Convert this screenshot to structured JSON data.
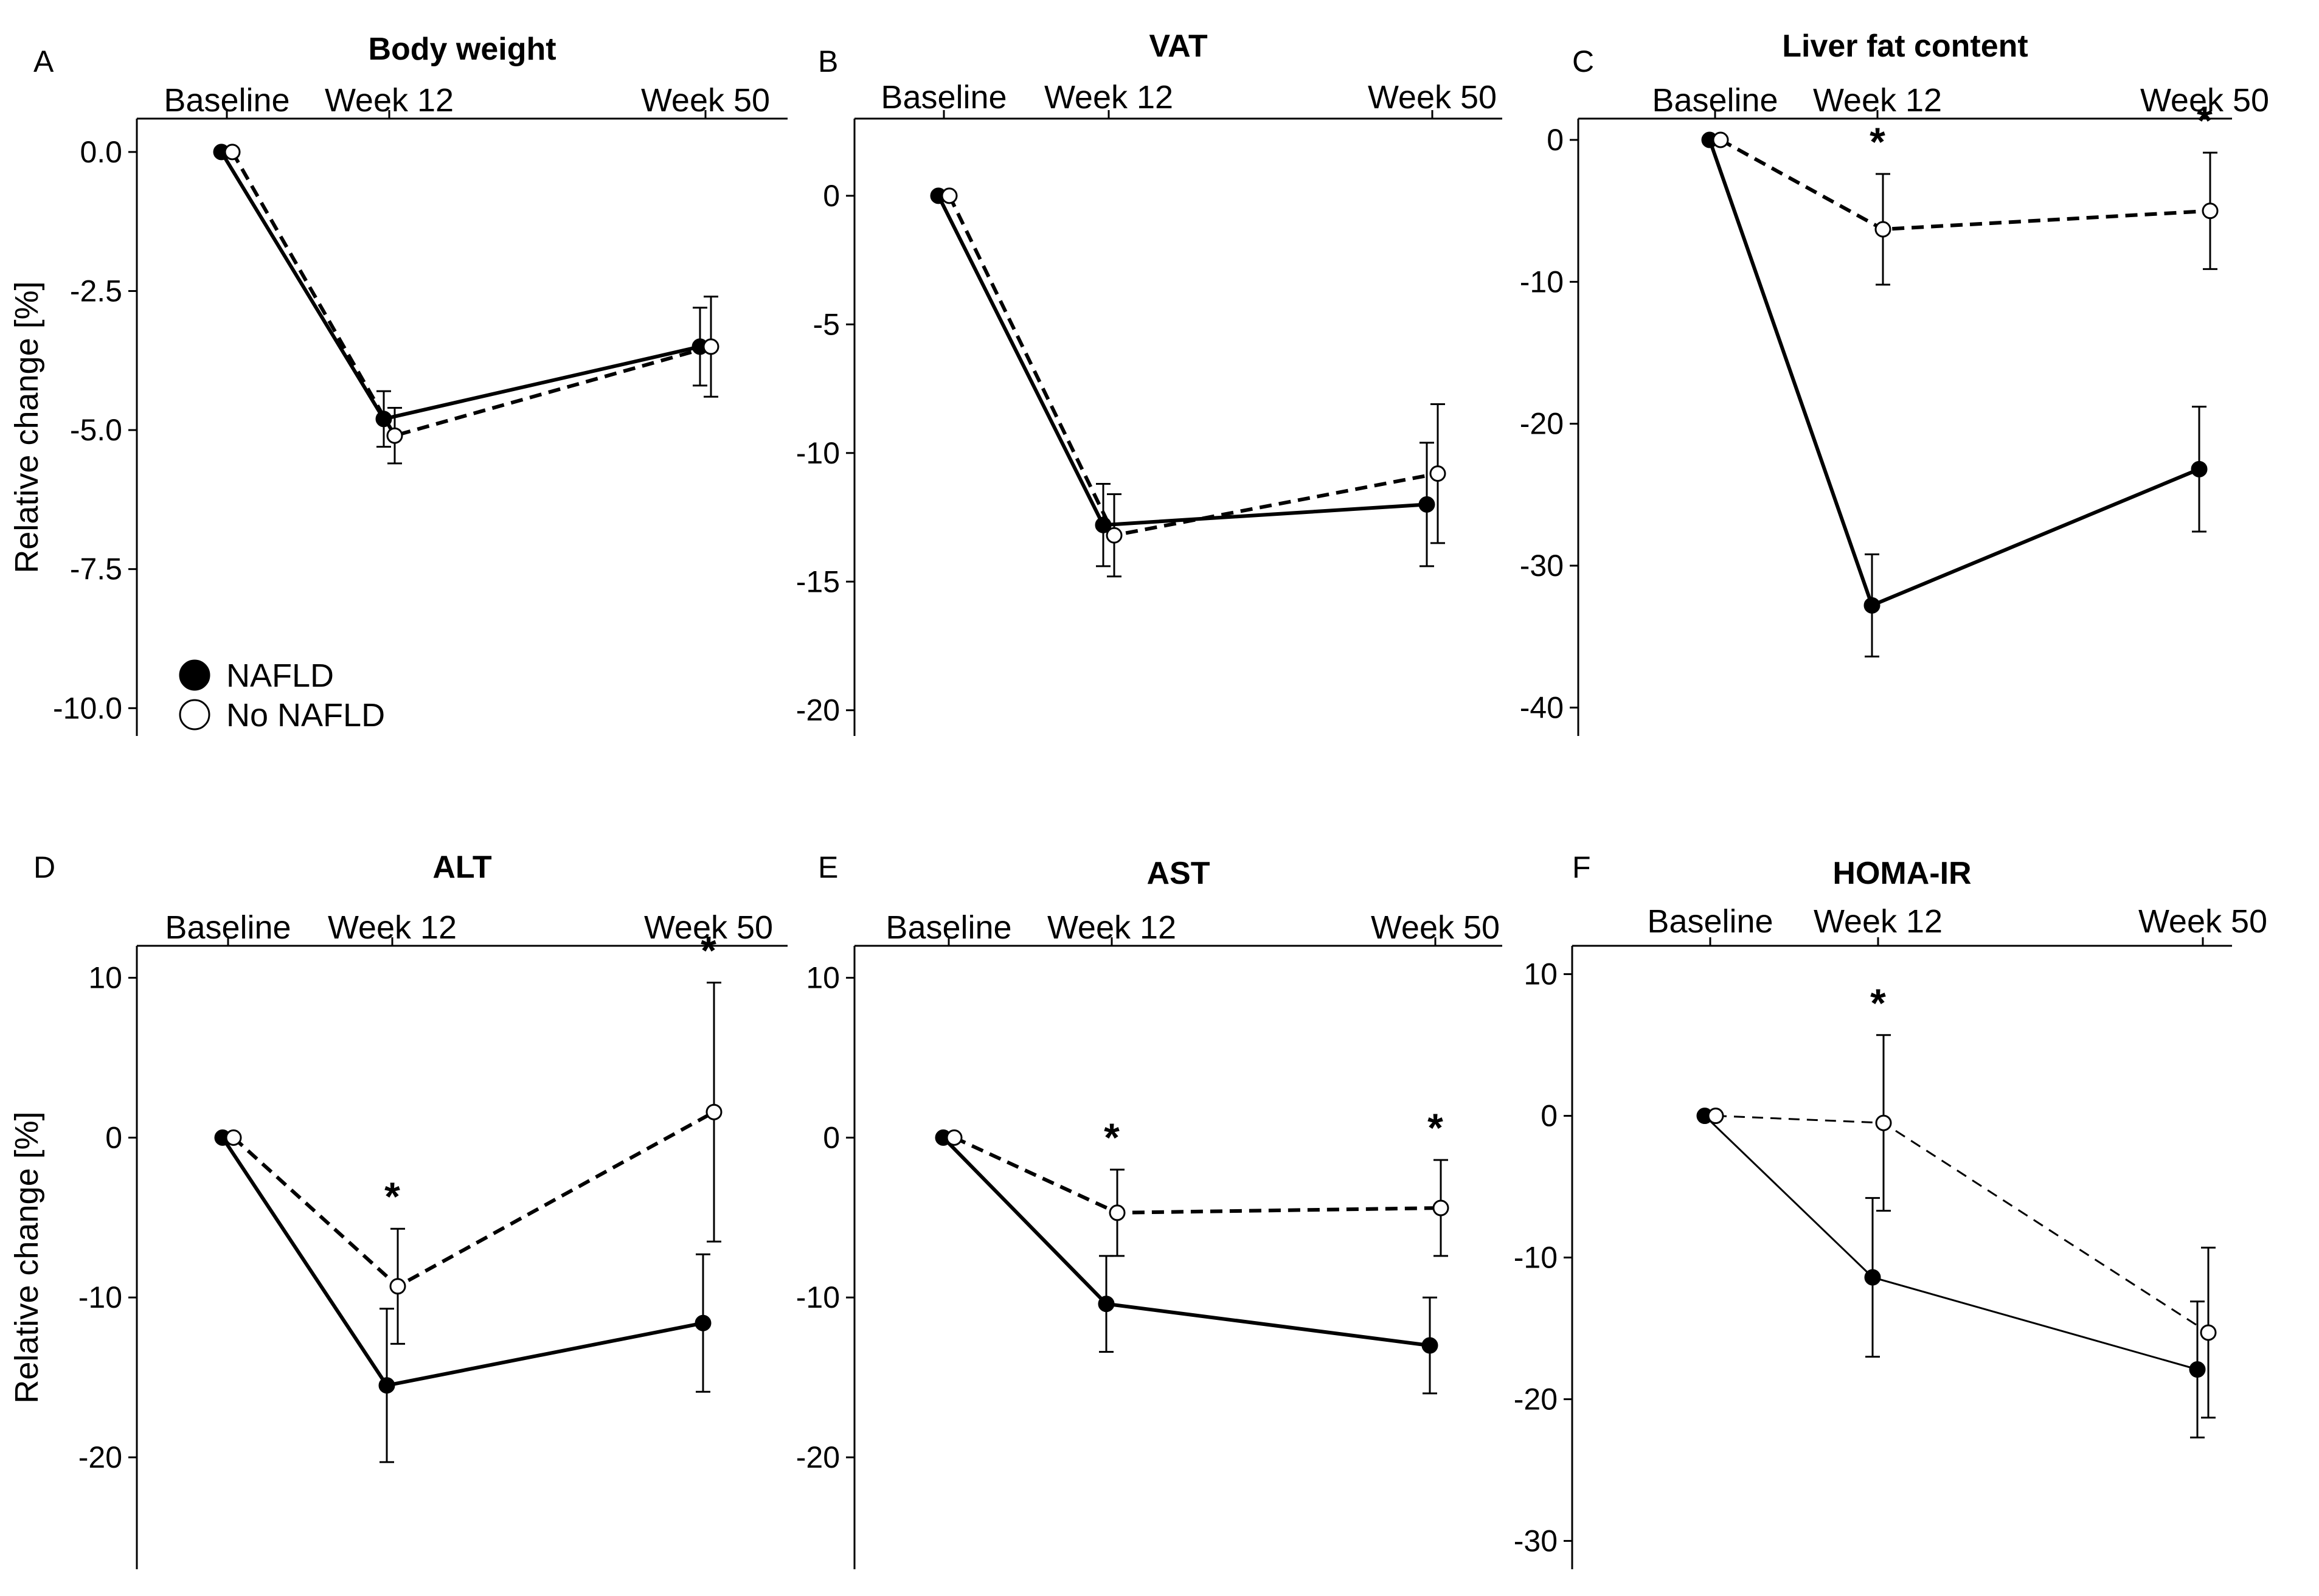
{
  "figure": {
    "y_axis_label": "Relative change [%]",
    "legend": [
      {
        "label": "NAFLD",
        "marker": "filled-circle",
        "line": "solid"
      },
      {
        "label": "No NAFLD",
        "marker": "open-circle",
        "line": "dashed"
      }
    ],
    "colors": {
      "ink": "#000000",
      "background": "#ffffff"
    }
  },
  "chart_data": [
    {
      "panel": "A",
      "type": "line",
      "title": "Body weight",
      "categories": [
        "Baseline",
        "Week 12",
        "Week 50"
      ],
      "ylim": [
        -10.5,
        0.6
      ],
      "yticks": [
        0.0,
        -2.5,
        -5.0,
        -7.5,
        -10.0
      ],
      "ytick_labels": [
        "0.0",
        "-2.5",
        "-5.0",
        "-7.5",
        "-10.0"
      ],
      "series": [
        {
          "name": "NAFLD",
          "values": [
            0,
            -4.8,
            -3.5
          ],
          "error": [
            0,
            0.5,
            0.7
          ]
        },
        {
          "name": "No NAFLD",
          "values": [
            0,
            -5.1,
            -3.5
          ],
          "error": [
            0,
            0.5,
            0.9
          ]
        }
      ],
      "significance": [
        false,
        false,
        false
      ]
    },
    {
      "panel": "B",
      "type": "line",
      "title": "VAT",
      "categories": [
        "Baseline",
        "Week 12",
        "Week 50"
      ],
      "ylim": [
        -21,
        3
      ],
      "yticks": [
        0,
        -5,
        -10,
        -15,
        -20
      ],
      "ytick_labels": [
        "0",
        "-5",
        "-10",
        "-15",
        "-20"
      ],
      "series": [
        {
          "name": "NAFLD",
          "values": [
            0,
            -12.8,
            -12.0
          ],
          "error": [
            0,
            1.6,
            2.4
          ]
        },
        {
          "name": "No NAFLD",
          "values": [
            0,
            -13.2,
            -10.8
          ],
          "error": [
            0,
            1.6,
            2.7
          ]
        }
      ],
      "significance": [
        false,
        false,
        false
      ]
    },
    {
      "panel": "C",
      "type": "line",
      "title": "Liver fat content",
      "categories": [
        "Baseline",
        "Week 12",
        "Week 50"
      ],
      "ylim": [
        -42,
        1.5
      ],
      "yticks": [
        0,
        -10,
        -20,
        -30,
        -40
      ],
      "ytick_labels": [
        "0",
        "-10",
        "-20",
        "-30",
        "-40"
      ],
      "series": [
        {
          "name": "NAFLD",
          "values": [
            0,
            -32.8,
            -23.2
          ],
          "error": [
            0,
            3.6,
            4.4
          ]
        },
        {
          "name": "No NAFLD",
          "values": [
            0,
            -6.3,
            -5.0
          ],
          "error": [
            0,
            3.9,
            4.1
          ]
        }
      ],
      "significance": [
        false,
        true,
        true
      ],
      "significance_label": "*"
    },
    {
      "panel": "D",
      "type": "line",
      "title": "ALT",
      "categories": [
        "Baseline",
        "Week 12",
        "Week 50"
      ],
      "ylim": [
        -27,
        12
      ],
      "yticks": [
        10,
        0,
        -10,
        -20
      ],
      "ytick_labels": [
        "10",
        "0",
        "-10",
        "-20"
      ],
      "series": [
        {
          "name": "NAFLD",
          "values": [
            0,
            -15.5,
            -11.6
          ],
          "error": [
            0,
            4.8,
            4.3
          ]
        },
        {
          "name": "No NAFLD",
          "values": [
            0,
            -9.3,
            1.6
          ],
          "error": [
            0,
            3.6,
            8.1
          ]
        }
      ],
      "significance": [
        false,
        true,
        true
      ],
      "significance_label": "*"
    },
    {
      "panel": "E",
      "type": "line",
      "title": "AST",
      "categories": [
        "Baseline",
        "Week 12",
        "Week 50"
      ],
      "ylim": [
        -27,
        12
      ],
      "yticks": [
        10,
        0,
        -10,
        -20
      ],
      "ytick_labels": [
        "10",
        "0",
        "-10",
        "-20"
      ],
      "series": [
        {
          "name": "NAFLD",
          "values": [
            0,
            -10.4,
            -13.0
          ],
          "error": [
            0,
            3.0,
            3.0
          ]
        },
        {
          "name": "No NAFLD",
          "values": [
            0,
            -4.7,
            -4.4
          ],
          "error": [
            0,
            2.7,
            3.0
          ]
        }
      ],
      "significance": [
        false,
        true,
        true
      ],
      "significance_label": "*"
    },
    {
      "panel": "F",
      "type": "line",
      "title": "HOMA-IR",
      "categories": [
        "Baseline",
        "Week 12",
        "Week 50"
      ],
      "ylim": [
        -32,
        12
      ],
      "yticks": [
        10,
        0,
        -10,
        -20,
        -30
      ],
      "ytick_labels": [
        "10",
        "0",
        "-10",
        "-20",
        "-30"
      ],
      "series": [
        {
          "name": "NAFLD",
          "values": [
            0,
            -11.4,
            -17.9
          ],
          "error": [
            0,
            5.6,
            4.8
          ]
        },
        {
          "name": "No NAFLD",
          "values": [
            0,
            -0.5,
            -15.3
          ],
          "error": [
            0,
            6.2,
            6.0
          ]
        }
      ],
      "significance": [
        false,
        true,
        false
      ],
      "significance_label": "*"
    }
  ]
}
